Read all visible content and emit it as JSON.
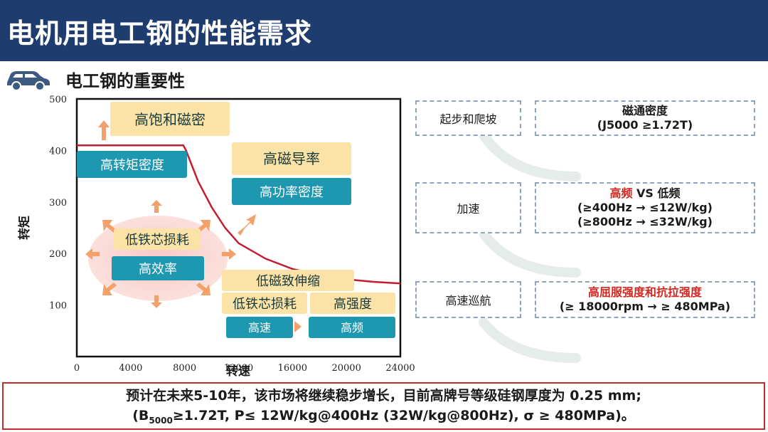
{
  "header": {
    "title": "电机用电工钢的性能需求"
  },
  "section": {
    "title": "电工钢的重要性"
  },
  "chart_data": {
    "type": "line",
    "xlabel": "转速",
    "ylabel": "转矩",
    "xlim": [
      0,
      24000
    ],
    "ylim": [
      0,
      500
    ],
    "x_ticks": [
      "0",
      "4000",
      "8000",
      "12000",
      "16000",
      "20000",
      "24000"
    ],
    "y_ticks": [
      "100",
      "200",
      "300",
      "400",
      "500"
    ],
    "series": [
      {
        "x": [
          0,
          7900,
          8100,
          9000,
          10000,
          11000,
          12000,
          14000,
          16000,
          18000,
          20000,
          22000,
          24000
        ],
        "values": [
          410,
          410,
          400,
          340,
          290,
          250,
          220,
          190,
          170,
          158,
          150,
          145,
          142
        ]
      }
    ],
    "labels": {
      "high_sat": "高饱和磁密",
      "high_torque": "高转矩密度",
      "high_perm": "高磁导率",
      "high_power": "高功率密度",
      "low_loss_1": "低铁芯损耗",
      "high_eff": "高效率",
      "low_mag": "低磁致伸缩",
      "low_loss_2": "低铁芯损耗",
      "high_strength": "高强度",
      "high_speed": "高速",
      "high_freq": "高频"
    }
  },
  "flow": {
    "left": [
      "起步和爬坡",
      "加速",
      "高速巡航"
    ],
    "req1": {
      "line1": "磁通密度",
      "line2": "(J5000 ≥1.72T)"
    },
    "req2": {
      "line1_red": "高频",
      "line1_rest": " VS 低频",
      "line2": "(≥400Hz  → ≤12W/kg)",
      "line3": "(≥800Hz  → ≤32W/kg)"
    },
    "req3": {
      "line1_red": "高屈服强度和抗拉强度",
      "line2": "(≥ 18000rpm → ≥ 480MPa)"
    }
  },
  "bottom": {
    "line1": "预计在未来5-10年，该市场将继续稳步增长，目前高牌号等级硅钢厚度为 0.25 mm;",
    "line2_a": "(B",
    "line2_sub": "5000",
    "line2_b": "≥1.72T, P≤ 12W/kg@400Hz (32W/kg@800Hz), σ ≥ 480MPa)。"
  },
  "colors": {
    "header": "#1f3c6e",
    "teal": "#1e97b0",
    "yellow": "#fbe3a8",
    "orange": "#f4a06a",
    "curve": "#c21d32",
    "red": "#d2261f"
  }
}
